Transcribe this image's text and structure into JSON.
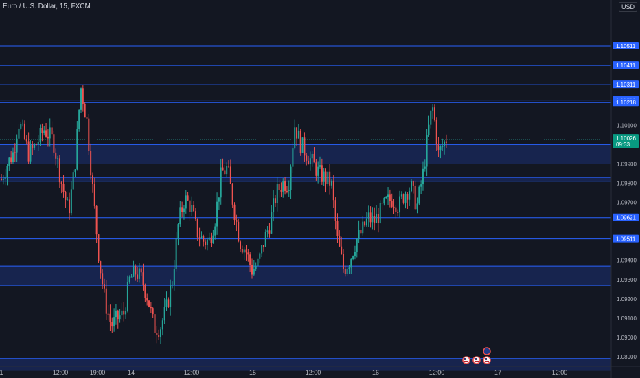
{
  "header": {
    "symbol_line": "Euro / U.S. Dollar, 15, FXCM",
    "currency": "USD"
  },
  "chart_data": {
    "type": "candlestick",
    "ylim": [
      1.0885,
      1.1075
    ],
    "y_ticks": [
      "1.10100",
      "1.09900",
      "1.09800",
      "1.09700",
      "1.09400",
      "1.09300",
      "1.09200",
      "1.09100",
      "1.09000",
      "1.08900"
    ],
    "x_ticks": [
      "1",
      "12:00",
      "19:00",
      "14",
      "12:00",
      "15",
      "12:00",
      "16",
      "12:00",
      "17",
      "12:00"
    ],
    "current_price": {
      "price": "1.10026",
      "countdown": "09:33"
    },
    "level_labels": [
      "1.10511",
      "1.10411",
      "1.10311",
      "1.10231",
      "1.10218",
      "1.09621",
      "1.09511"
    ],
    "zones": [
      {
        "from": 1.099,
        "to": 1.1
      },
      {
        "from": 1.0981,
        "to": 1.0983
      },
      {
        "from": 1.0927,
        "to": 1.0937
      },
      {
        "from": 1.0883,
        "to": 1.0889
      }
    ],
    "close_path": [
      [
        0,
        1.0982
      ],
      [
        0.01,
        1.099
      ],
      [
        0.02,
        1.0996
      ],
      [
        0.028,
        1.1012
      ],
      [
        0.035,
        1.1006
      ],
      [
        0.045,
        1.0995
      ],
      [
        0.055,
        1.0999
      ],
      [
        0.07,
        1.1008
      ],
      [
        0.085,
        1.1002
      ],
      [
        0.1,
        1.0978
      ],
      [
        0.11,
        1.0965
      ],
      [
        0.12,
        1.0988
      ],
      [
        0.13,
        1.103
      ],
      [
        0.14,
        1.1012
      ],
      [
        0.15,
        1.0975
      ],
      [
        0.16,
        1.094
      ],
      [
        0.17,
        1.0918
      ],
      [
        0.18,
        1.0906
      ],
      [
        0.19,
        1.091
      ],
      [
        0.2,
        1.0912
      ],
      [
        0.21,
        1.093
      ],
      [
        0.22,
        1.0934
      ],
      [
        0.23,
        1.093
      ],
      [
        0.24,
        1.092
      ],
      [
        0.25,
        1.0905
      ],
      [
        0.26,
        1.0905
      ],
      [
        0.27,
        1.0915
      ],
      [
        0.28,
        1.093
      ],
      [
        0.29,
        1.096
      ],
      [
        0.3,
        1.0972
      ],
      [
        0.31,
        1.0968
      ],
      [
        0.32,
        1.0955
      ],
      [
        0.33,
        1.095
      ],
      [
        0.34,
        1.095
      ],
      [
        0.35,
        1.0962
      ],
      [
        0.36,
        1.0985
      ],
      [
        0.37,
        1.0988
      ],
      [
        0.38,
        1.0968
      ],
      [
        0.39,
        1.095
      ],
      [
        0.4,
        1.0945
      ],
      [
        0.41,
        1.0935
      ],
      [
        0.42,
        1.0938
      ],
      [
        0.43,
        1.095
      ],
      [
        0.44,
        1.096
      ],
      [
        0.45,
        1.0975
      ],
      [
        0.46,
        1.098
      ],
      [
        0.47,
        1.098
      ],
      [
        0.48,
        1.101
      ],
      [
        0.49,
        1.1
      ],
      [
        0.5,
        1.0995
      ],
      [
        0.52,
        1.0985
      ],
      [
        0.54,
        1.098
      ],
      [
        0.55,
        1.095
      ],
      [
        0.56,
        1.0935
      ],
      [
        0.57,
        1.094
      ],
      [
        0.58,
        1.095
      ],
      [
        0.59,
        1.0955
      ],
      [
        0.6,
        1.0962
      ],
      [
        0.61,
        1.096
      ],
      [
        0.62,
        1.0965
      ],
      [
        0.63,
        1.097
      ],
      [
        0.64,
        1.0972
      ],
      [
        0.65,
        1.0968
      ],
      [
        0.66,
        1.0975
      ],
      [
        0.67,
        1.0978
      ],
      [
        0.68,
        1.0968
      ],
      [
        0.69,
        1.0985
      ],
      [
        0.7,
        1.101
      ],
      [
        0.705,
        1.102
      ],
      [
        0.71,
        1.101
      ],
      [
        0.715,
        1.0995
      ],
      [
        0.72,
        1.0998
      ],
      [
        0.728,
        1.1003
      ]
    ],
    "event_icons": [
      "flag-eu",
      "flag-us",
      "flag-us",
      "flag-us"
    ]
  }
}
